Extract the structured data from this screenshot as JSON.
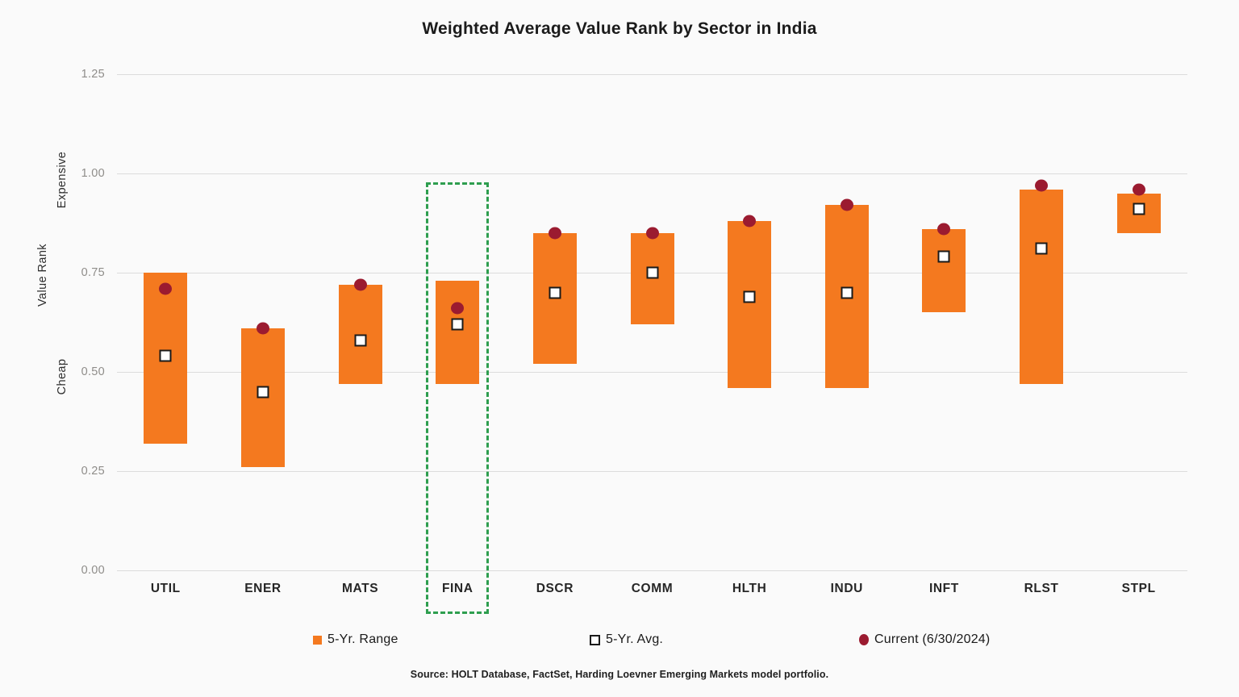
{
  "title": "Weighted Average Value Rank by Sector in India",
  "y_axis": {
    "label_expensive": "Expensive",
    "label_value_rank": "Value Rank",
    "label_cheap": "Cheap",
    "ticks": [
      "1.25",
      "1.00",
      "0.75",
      "0.50",
      "0.25",
      "0.00"
    ]
  },
  "legend": [
    {
      "label": "5-Yr. Range",
      "marker": "orange-square",
      "color": "#f4791f"
    },
    {
      "label": "5-Yr. Avg.",
      "marker": "open-square",
      "color": "#ffffff"
    },
    {
      "label": "Current (6/30/2024)",
      "marker": "filled-circle",
      "color": "#9b1b30"
    }
  ],
  "source": "Source: HOLT Database, FactSet, Harding Loevner Emerging Markets model portfolio.",
  "highlight": {
    "category": "FINA",
    "box_top_value": 0.978
  },
  "colors": {
    "range_bar": "#f4791f",
    "current_dot": "#9b1b30",
    "highlight_green": "#2e9e4f",
    "gridline": "#dcdcdc",
    "background": "#fafafa"
  },
  "chart_data": {
    "type": "bar",
    "subtype": "floating-range-bars-with-markers",
    "title": "Weighted Average Value Rank by Sector in India",
    "ylabel": "Value Rank (Cheap → Expensive)",
    "xlabel": "",
    "ylim": [
      0,
      1.25
    ],
    "grid": true,
    "legend_position": "bottom",
    "categories": [
      "UTIL",
      "ENER",
      "MATS",
      "FINA",
      "DSCR",
      "COMM",
      "HLTH",
      "INDU",
      "INFT",
      "RLST",
      "STPL"
    ],
    "series": [
      {
        "name": "5-Yr. Range",
        "role": "range",
        "low": [
          0.32,
          0.26,
          0.47,
          0.47,
          0.52,
          0.62,
          0.46,
          0.46,
          0.65,
          0.47,
          0.85
        ],
        "high": [
          0.75,
          0.61,
          0.72,
          0.73,
          0.85,
          0.85,
          0.88,
          0.92,
          0.86,
          0.96,
          0.95
        ]
      },
      {
        "name": "5-Yr. Avg.",
        "role": "avg",
        "values": [
          0.54,
          0.45,
          0.58,
          0.62,
          0.7,
          0.75,
          0.69,
          0.7,
          0.79,
          0.81,
          0.91
        ]
      },
      {
        "name": "Current (6/30/2024)",
        "role": "current",
        "values": [
          0.71,
          0.61,
          0.72,
          0.66,
          0.85,
          0.85,
          0.88,
          0.92,
          0.86,
          0.97,
          0.96
        ]
      }
    ]
  }
}
